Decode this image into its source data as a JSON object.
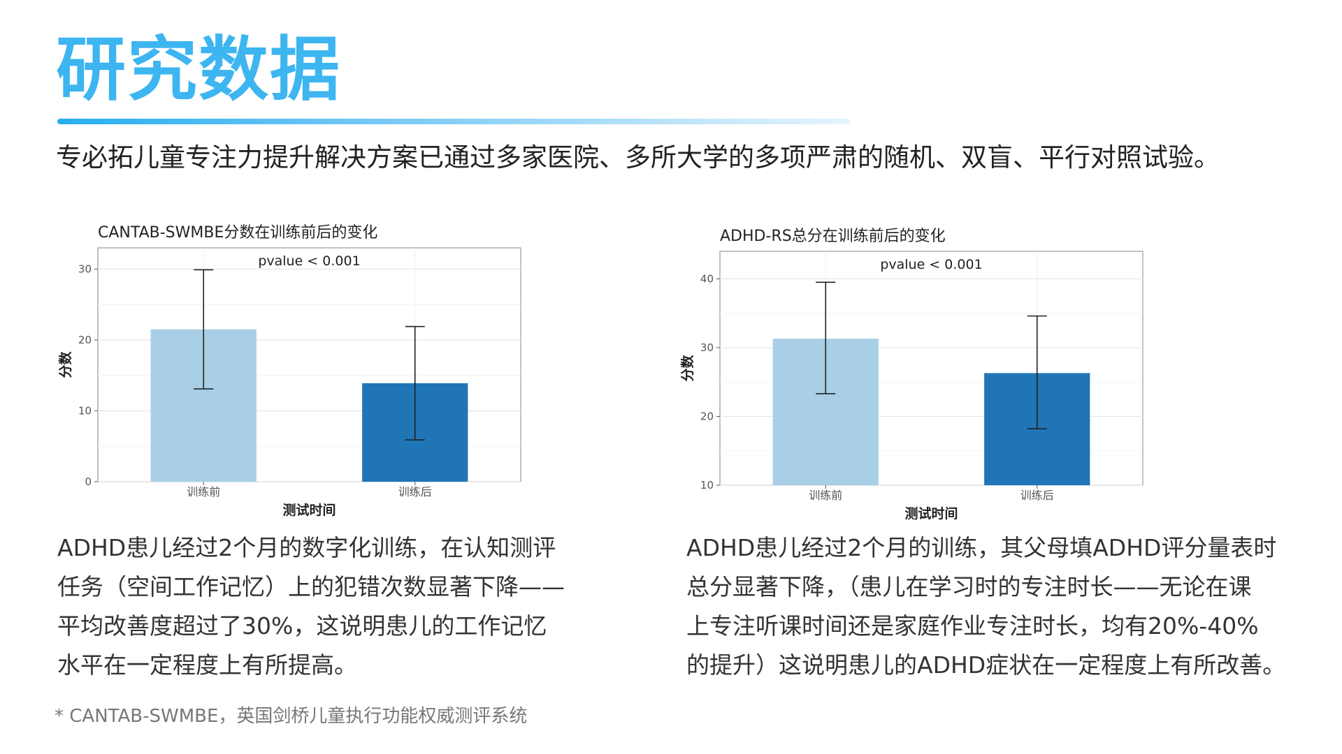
{
  "header": {
    "title": "研究数据",
    "subtitle": "专必拓儿童专注力提升解决方案已通过多家医院、多所大学的多项严肃的随机、双盲、平行对照试验。"
  },
  "colors": {
    "title": "#3db5f0",
    "bar_before": "#a8cfe5",
    "bar_after": "#1f75b6"
  },
  "chart_data": [
    {
      "type": "bar",
      "title": "CANTAB-SWMBE分数在训练前后的变化",
      "annotation": "pvalue < 0.001",
      "xlabel": "测试时间",
      "ylabel": "分数",
      "categories": [
        "训练前",
        "训练后"
      ],
      "values": [
        21.5,
        13.9
      ],
      "error_low": [
        13.1,
        5.9
      ],
      "error_high": [
        29.9,
        21.9
      ],
      "ylim": [
        0,
        33
      ],
      "yticks": [
        0,
        10,
        20,
        30
      ],
      "grid": true
    },
    {
      "type": "bar",
      "title": "ADHD-RS总分在训练前后的变化",
      "annotation": "pvalue < 0.001",
      "xlabel": "测试时间",
      "ylabel": "分数",
      "categories": [
        "训练前",
        "训练后"
      ],
      "values": [
        31.3,
        26.3
      ],
      "error_low": [
        23.3,
        18.2
      ],
      "error_high": [
        39.5,
        34.6
      ],
      "ylim": [
        10,
        44
      ],
      "yticks": [
        10,
        20,
        30,
        40
      ],
      "grid": true
    }
  ],
  "descriptions": {
    "left": [
      "ADHD患儿经过2个月的数字化训练，在认知测评",
      "任务（空间工作记忆）上的犯错次数显著下降——",
      "平均改善度超过了30%，这说明患儿的工作记忆",
      "水平在一定程度上有所提高。"
    ],
    "right": [
      "ADHD患儿经过2个月的训练，其父母填ADHD评分量表时",
      "总分显著下降，（患儿在学习时的专注时长——无论在课",
      "上专注听课时间还是家庭作业专注时长，均有20%-40%",
      "的提升）这说明患儿的ADHD症状在一定程度上有所改善。"
    ]
  },
  "footnote": "* CANTAB-SWMBE，英国剑桥儿童执行功能权威测评系统"
}
